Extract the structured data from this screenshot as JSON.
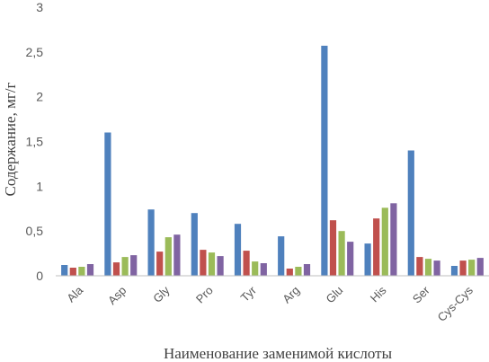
{
  "chart_data": {
    "type": "bar",
    "title": "",
    "xlabel": "Наименование заменимой кислоты",
    "ylabel": "Содержание, мг/г",
    "ylim": [
      0,
      3
    ],
    "yticks": [
      "0",
      "0,5",
      "1",
      "1,5",
      "2",
      "2,5",
      "3"
    ],
    "ytick_values": [
      0,
      0.5,
      1,
      1.5,
      2,
      2.5,
      3
    ],
    "grid": false,
    "legend": "none",
    "categories": [
      "Ala",
      "Asp",
      "Gly",
      "Pro",
      "Tyr",
      "Arg",
      "Glu",
      "His",
      "Ser",
      "Cys-Cys"
    ],
    "series": [
      {
        "color": "#4f81bd",
        "values": [
          0.12,
          1.6,
          0.74,
          0.7,
          0.58,
          0.44,
          2.57,
          0.36,
          1.4,
          0.11
        ]
      },
      {
        "color": "#c0504d",
        "values": [
          0.09,
          0.15,
          0.27,
          0.29,
          0.28,
          0.08,
          0.62,
          0.64,
          0.21,
          0.17
        ]
      },
      {
        "color": "#9bbb59",
        "values": [
          0.1,
          0.21,
          0.43,
          0.26,
          0.16,
          0.1,
          0.5,
          0.76,
          0.19,
          0.18
        ]
      },
      {
        "color": "#8064a2",
        "values": [
          0.13,
          0.23,
          0.46,
          0.22,
          0.14,
          0.13,
          0.38,
          0.81,
          0.17,
          0.2
        ]
      }
    ]
  }
}
